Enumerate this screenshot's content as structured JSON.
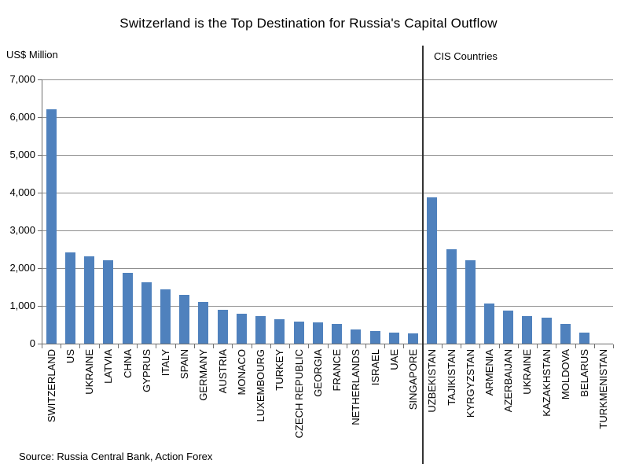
{
  "title": "Switzerland is the Top Destination for Russia's Capital Outflow",
  "ylabel": "US$ Million",
  "cis_label": "CIS Countries",
  "source": "Source: Russia Central Bank, Action Forex",
  "colors": {
    "bar": "#4f81bd",
    "gridline": "#8f8f8f",
    "axis": "#6e6e6e",
    "divider": "#333333"
  },
  "chart_data": {
    "type": "bar",
    "title": "Switzerland is the Top Destination for Russia's Capital Outflow",
    "xlabel": "",
    "ylabel": "US$ Million",
    "ylim": [
      0,
      7000
    ],
    "ytick_interval": 1000,
    "ytick_labels": [
      "0",
      "1,000",
      "2,000",
      "3,000",
      "4,000",
      "5,000",
      "6,000",
      "7,000"
    ],
    "grid": true,
    "legend": false,
    "divider_after_index": 19,
    "right_group_label": "CIS Countries",
    "categories": [
      "SWITZERLAND",
      "US",
      "UKRAINE",
      "LATVIA",
      "CHNA",
      "GYPRUS",
      "ITALY",
      "SPAIN",
      "GERMANY",
      "AUSTRIA",
      "MONACO",
      "LUXEMBOURG",
      "TURKEY",
      "CZECH REPUBLIC",
      "GEORGIA",
      "FRANCE",
      "NETHERLANDS",
      "ISRAEL",
      "UAE",
      "SINGAPORE",
      "UZBEKISTAN",
      "TAJIKISTAN",
      "KYRGYZSTAN",
      "ARMENIA",
      "AZERBAIJAN",
      "UKRAINE",
      "KAZAKHSTAN",
      "MOLDOVA",
      "BELARUS",
      "TURKMENISTAN"
    ],
    "values": [
      6200,
      2420,
      2310,
      2200,
      1870,
      1630,
      1440,
      1300,
      1100,
      900,
      790,
      720,
      650,
      590,
      570,
      530,
      380,
      340,
      300,
      280,
      3880,
      2510,
      2210,
      1070,
      880,
      720,
      690,
      520,
      300,
      0
    ]
  }
}
